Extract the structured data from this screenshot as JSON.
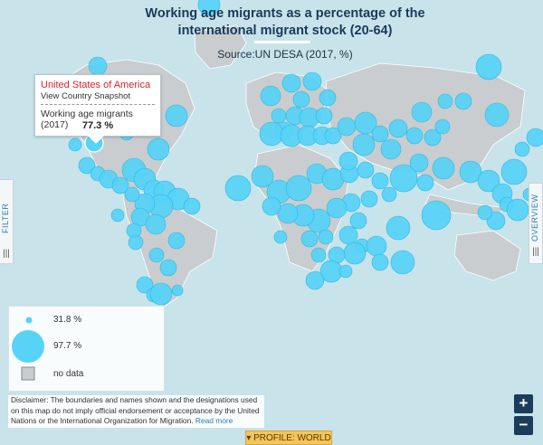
{
  "title": "Working age migrants as a percentage of the international migrant stock (20-64)",
  "source": "Source:UN DESA (2017, %)",
  "tooltip": {
    "country": "United States of America",
    "link": "View Country Snapshot",
    "label": "Working age migrants (2017)",
    "value": "77.3 %"
  },
  "side_tabs": {
    "left": "FILTER",
    "right": "OVERVIEW",
    "grip": "|||"
  },
  "legend": {
    "small": "31.8 %",
    "large": "97.7 %",
    "nodata": "no data"
  },
  "disclaimer": {
    "text": "Disclaimer: The boundaries and names shown and the designations used on this map do not imply official endorsement or acceptance by the United Nations or the International Organization for Migration.",
    "link": "Read more"
  },
  "zoom": {
    "in": "+",
    "out": "−"
  },
  "profile": "▾ PROFILE: WORLD",
  "colors": {
    "water": "#c8e3ea",
    "land": "#c9cdcf",
    "bubble": "#56d3f7",
    "bubble_stroke": "#2fb7df",
    "accent": "#2a7db0",
    "title": "#1a3a5a"
  },
  "map_data": {
    "units": "%",
    "min_value": 31.8,
    "max_value": 97.7,
    "highlighted": {
      "country": "United States of America",
      "value": 77.3
    }
  }
}
